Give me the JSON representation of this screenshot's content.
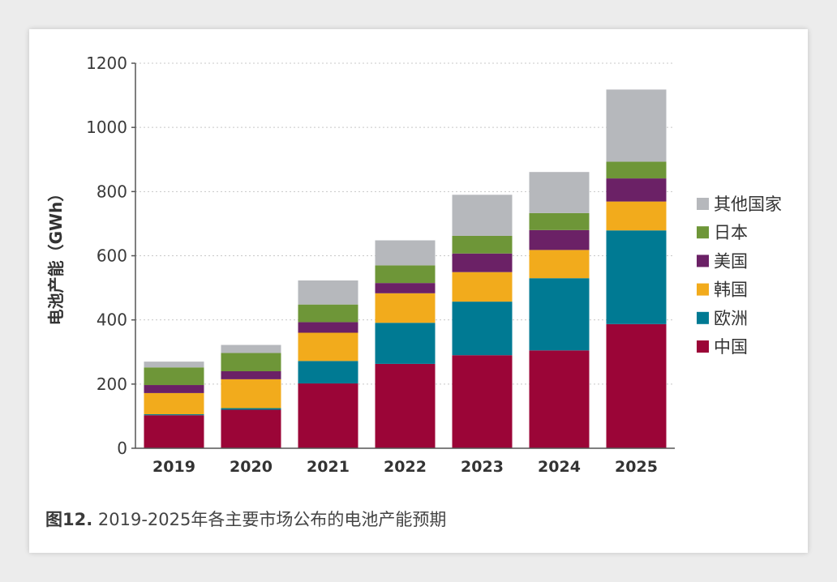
{
  "chart_data": {
    "type": "bar",
    "stacked": true,
    "categories": [
      "2019",
      "2020",
      "2021",
      "2022",
      "2023",
      "2024",
      "2025"
    ],
    "ylabel": "电池产能（GWh）",
    "ylim": [
      0,
      1200
    ],
    "yticks": [
      "0",
      "200",
      "400",
      "600",
      "800",
      "1000",
      "1200"
    ],
    "grid": true,
    "legend_position": "right",
    "series": [
      {
        "name": "中国",
        "color": "#9b0537",
        "values": [
          103,
          120,
          202,
          263,
          290,
          305,
          387
        ]
      },
      {
        "name": "欧洲",
        "color": "#007a93",
        "values": [
          3,
          5,
          70,
          128,
          167,
          225,
          292
        ]
      },
      {
        "name": "韩国",
        "color": "#f2ab1c",
        "values": [
          66,
          90,
          88,
          92,
          92,
          88,
          90
        ]
      },
      {
        "name": "美国",
        "color": "#6b2166",
        "values": [
          25,
          25,
          33,
          32,
          58,
          62,
          72
        ]
      },
      {
        "name": "日本",
        "color": "#6e9638",
        "values": [
          55,
          57,
          55,
          55,
          55,
          53,
          52
        ]
      },
      {
        "name": "其他国家",
        "color": "#b6b8bc",
        "values": [
          18,
          25,
          75,
          78,
          128,
          128,
          225
        ]
      }
    ]
  },
  "caption": {
    "label": "图12.",
    "text": "2019-2025年各主要市场公布的电池产能预期"
  }
}
